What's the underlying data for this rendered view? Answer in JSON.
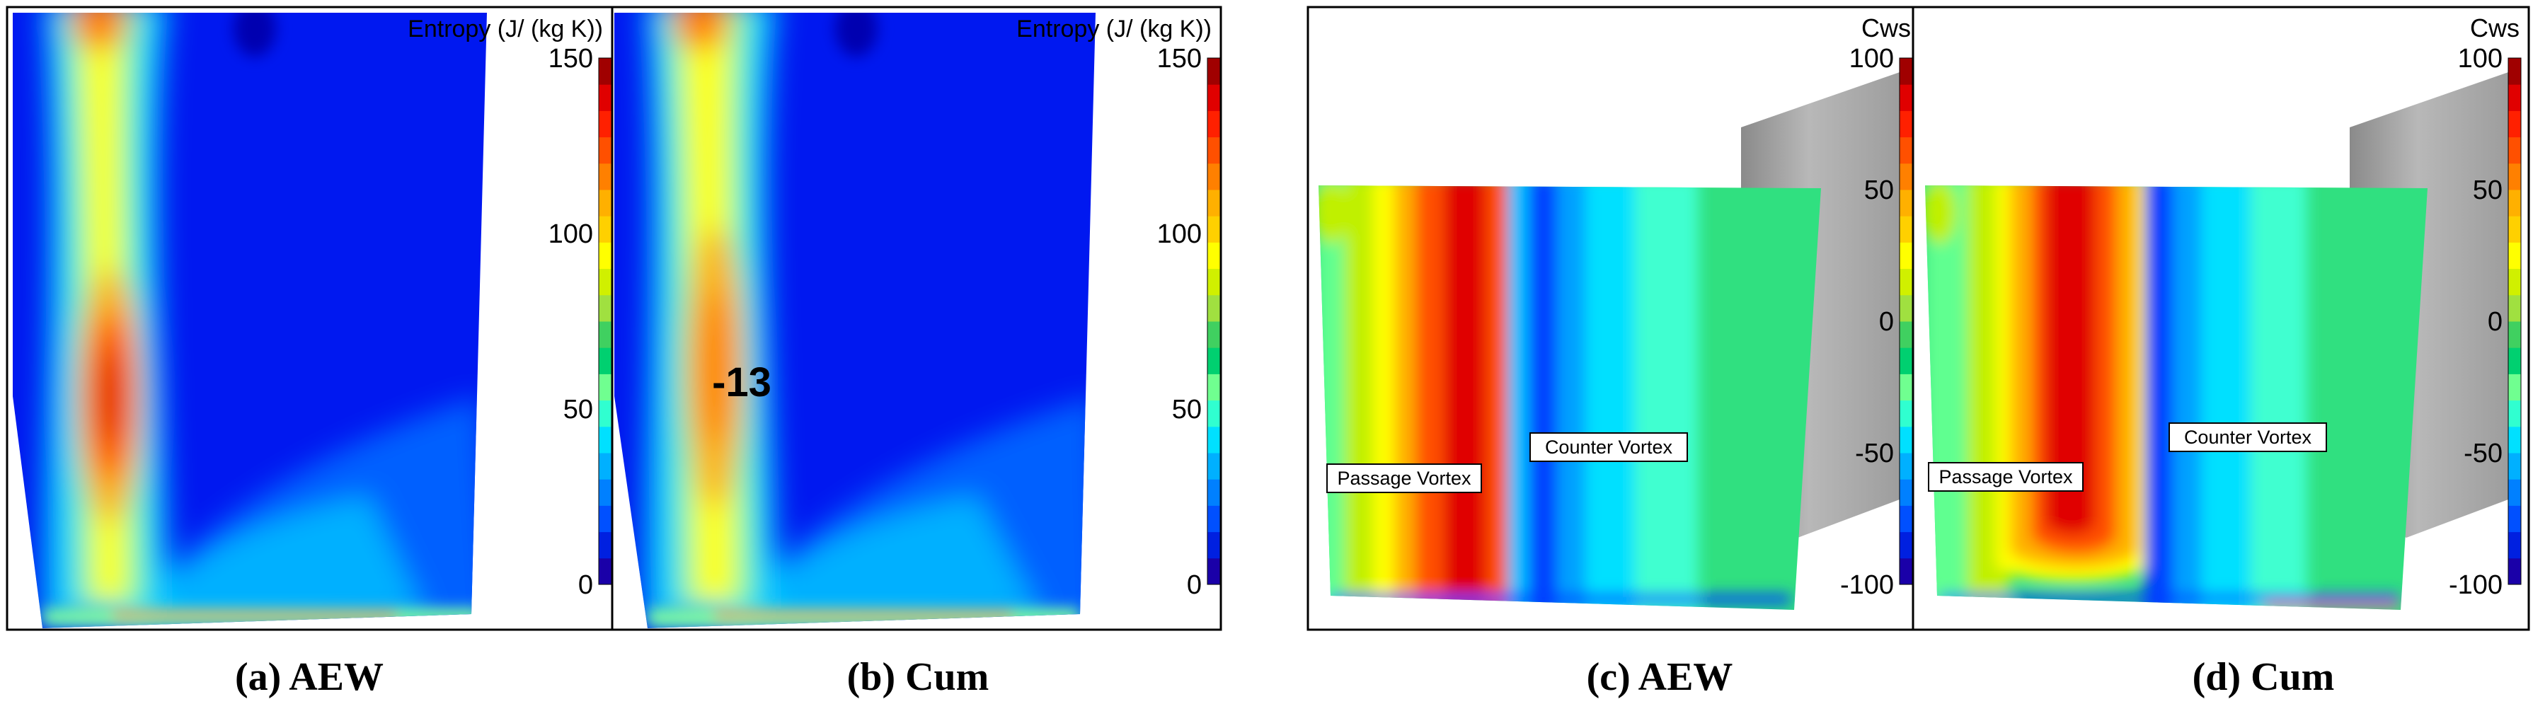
{
  "figure": {
    "panels": [
      {
        "id": "a",
        "caption": "(a) AEW",
        "variable": "Entropy",
        "legend_title": "Entropy (J/ (kg K))"
      },
      {
        "id": "b",
        "caption": "(b) Cum",
        "variable": "Entropy",
        "legend_title": "Entropy (J/ (kg K))",
        "annotation": "-13"
      },
      {
        "id": "c",
        "caption": "(c) AEW",
        "variable": "Cws",
        "legend_title": "Cws",
        "labels": [
          "Passage Vortex",
          "Counter Vortex"
        ]
      },
      {
        "id": "d",
        "caption": "(d) Cum",
        "variable": "Cws",
        "legend_title": "Cws",
        "labels": [
          "Passage Vortex",
          "Counter Vortex"
        ]
      }
    ]
  },
  "chart_data": [
    {
      "type": "heatmap",
      "title": "Entropy (J/ (kg K))",
      "colorbar": {
        "min": 0,
        "max": 150,
        "ticks": [
          0,
          50,
          100,
          150
        ],
        "levels": 20
      },
      "panels": [
        "(a) AEW",
        "(b) Cum"
      ]
    },
    {
      "type": "heatmap",
      "title": "Cws",
      "colorbar": {
        "min": -100,
        "max": 100,
        "ticks": [
          -100,
          -50,
          0,
          50,
          100
        ],
        "levels": 20
      },
      "panels": [
        "(c) AEW",
        "(d) Cum"
      ]
    }
  ],
  "colors": {
    "jet": [
      "#1a00a8",
      "#0020e0",
      "#0050ff",
      "#0080ff",
      "#00b0ff",
      "#00e0ff",
      "#30ffd0",
      "#70ff90",
      "#00d070",
      "#40d060",
      "#a0e040",
      "#d0f000",
      "#ffff00",
      "#ffd000",
      "#ffb000",
      "#ff8000",
      "#ff5000",
      "#ff2000",
      "#e00000",
      "#a00000"
    ]
  }
}
